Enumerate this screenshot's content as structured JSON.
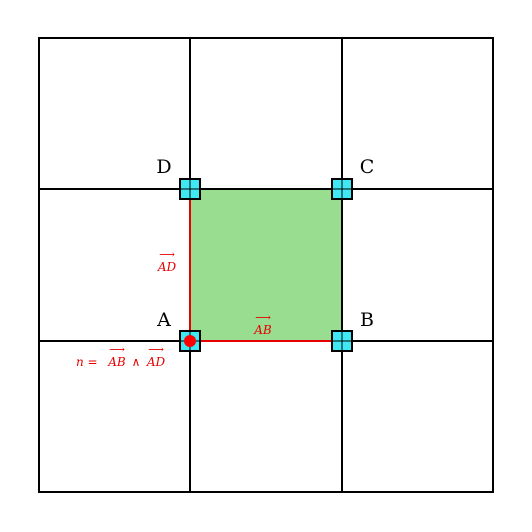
{
  "colors": {
    "background": "#ffffff",
    "grid_line": "#000000",
    "cell_fill": "#98dd90",
    "vertex_fill": "#40e8f4",
    "vector": "#e60000",
    "normal_point": "#ff0000"
  },
  "icons": {
    "vertex": "cyan-square-marker-icon",
    "normal": "red-dot-icon"
  },
  "vertices": {
    "a": "A",
    "b": "B",
    "c": "C",
    "d": "D"
  },
  "vectors": {
    "ab": {
      "base": "AB",
      "arrow": "⟶"
    },
    "ad": {
      "base": "AD",
      "arrow": "⟶"
    }
  },
  "normal": {
    "prefix": "n =",
    "ab": "AB",
    "wedge": "∧",
    "ad": "AD",
    "arrow": "⟶"
  }
}
